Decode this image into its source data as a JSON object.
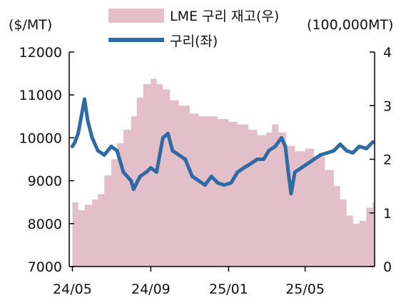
{
  "chart_data": {
    "type": "line",
    "left_axis_unit": "($/MT)",
    "right_axis_unit": "(100,000MT)",
    "left_ticks": [
      "12000",
      "11000",
      "10000",
      "9000",
      "8000",
      "7000"
    ],
    "right_ticks": [
      "4",
      "3",
      "2",
      "1",
      "0"
    ],
    "x_ticks": [
      "24/05",
      "24/09",
      "25/01",
      "25/05"
    ],
    "ylim_left": [
      7000,
      12000
    ],
    "ylim_right": [
      0,
      4
    ],
    "grid": false,
    "legend_position": "top",
    "series": [
      {
        "name": "LME 구리 재고(우)",
        "type": "area",
        "axis": "right",
        "color": "#e3bfca",
        "x": [
          "2024-05-01",
          "2024-05-10",
          "2024-05-20",
          "2024-06-01",
          "2024-06-10",
          "2024-06-20",
          "2024-07-01",
          "2024-07-10",
          "2024-07-20",
          "2024-08-01",
          "2024-08-10",
          "2024-08-20",
          "2024-09-01",
          "2024-09-10",
          "2024-09-20",
          "2024-10-01",
          "2024-10-15",
          "2024-11-01",
          "2024-11-15",
          "2024-12-01",
          "2024-12-15",
          "2025-01-01",
          "2025-01-15",
          "2025-02-01",
          "2025-02-15",
          "2025-03-01",
          "2025-03-10",
          "2025-03-20",
          "2025-04-01",
          "2025-04-15",
          "2025-05-01",
          "2025-05-15",
          "2025-06-01",
          "2025-06-15",
          "2025-06-25",
          "2025-07-05",
          "2025-07-15",
          "2025-07-25",
          "2025-08-05",
          "2025-08-15"
        ],
        "values": [
          1.2,
          1.05,
          1.15,
          1.25,
          1.35,
          1.7,
          2.0,
          2.3,
          2.55,
          2.8,
          3.15,
          3.4,
          3.5,
          3.4,
          3.3,
          3.1,
          3.0,
          2.85,
          2.8,
          2.8,
          2.75,
          2.7,
          2.65,
          2.55,
          2.45,
          2.5,
          2.65,
          2.5,
          2.25,
          2.15,
          2.2,
          2.05,
          1.8,
          1.5,
          1.25,
          0.95,
          0.8,
          0.85,
          1.1,
          1.2
        ]
      },
      {
        "name": "구리(좌)",
        "type": "line",
        "axis": "left",
        "color": "#2e6aa4",
        "x": [
          "2024-05-01",
          "2024-05-05",
          "2024-05-10",
          "2024-05-15",
          "2024-05-20",
          "2024-05-25",
          "2024-06-01",
          "2024-06-10",
          "2024-06-20",
          "2024-07-01",
          "2024-07-10",
          "2024-07-20",
          "2024-08-01",
          "2024-08-05",
          "2024-08-15",
          "2024-08-25",
          "2024-09-01",
          "2024-09-10",
          "2024-09-20",
          "2024-09-28",
          "2024-10-05",
          "2024-10-15",
          "2024-10-25",
          "2024-11-05",
          "2024-11-15",
          "2024-11-25",
          "2024-12-05",
          "2024-12-15",
          "2024-12-25",
          "2025-01-05",
          "2025-01-15",
          "2025-01-25",
          "2025-02-05",
          "2025-02-15",
          "2025-02-25",
          "2025-03-05",
          "2025-03-15",
          "2025-03-25",
          "2025-03-31",
          "2025-04-05",
          "2025-04-09",
          "2025-04-15",
          "2025-04-25",
          "2025-05-05",
          "2025-05-15",
          "2025-05-25",
          "2025-06-05",
          "2025-06-15",
          "2025-06-25",
          "2025-07-05",
          "2025-07-15",
          "2025-07-25",
          "2025-08-05",
          "2025-08-15"
        ],
        "values": [
          9800,
          9900,
          10100,
          10500,
          10900,
          10400,
          10000,
          9700,
          9600,
          9800,
          9700,
          9200,
          9000,
          8800,
          9100,
          9200,
          9300,
          9200,
          10000,
          10100,
          9700,
          9600,
          9500,
          9100,
          9000,
          8900,
          9100,
          8950,
          8900,
          8950,
          9200,
          9300,
          9400,
          9500,
          9500,
          9700,
          9800,
          10000,
          9800,
          9150,
          8700,
          9200,
          9300,
          9400,
          9500,
          9600,
          9650,
          9700,
          9850,
          9700,
          9650,
          9800,
          9750,
          9900
        ]
      }
    ]
  }
}
